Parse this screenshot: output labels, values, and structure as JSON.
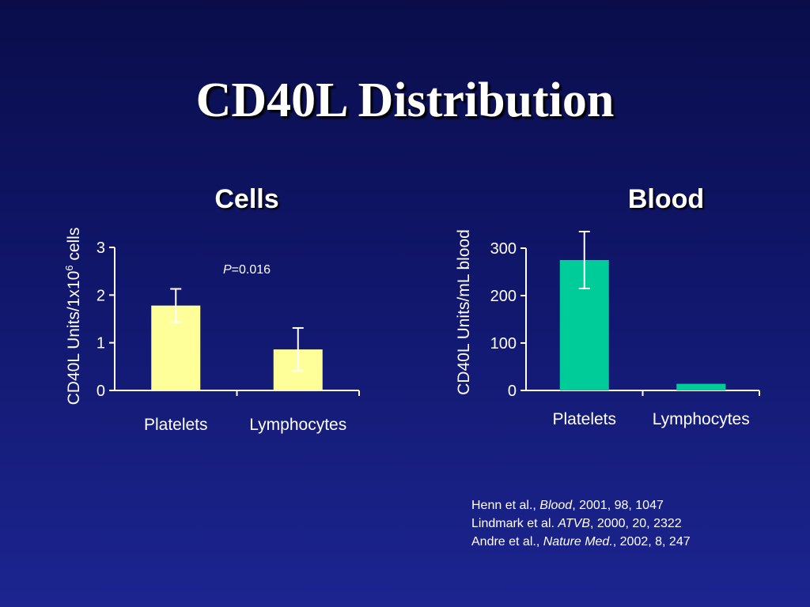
{
  "slide": {
    "title": "CD40L Distribution"
  },
  "chart_data": [
    {
      "type": "bar",
      "title": "Cells",
      "ylabel_main": "CD40L Units/1x10",
      "ylabel_sup": "6",
      "ylabel_tail": " cells",
      "xlabel": "",
      "categories": [
        "Platelets",
        "Lymphocytes"
      ],
      "values": [
        1.78,
        0.86
      ],
      "error": [
        0.35,
        0.45
      ],
      "ylim": [
        0,
        3
      ],
      "yticks": [
        "0",
        "1",
        "2",
        "3"
      ],
      "ytick_values": [
        0,
        1,
        2,
        3
      ],
      "bar_color": "#ffff99",
      "annotation_p": "P",
      "annotation_rest": "=0.016",
      "grid": false
    },
    {
      "type": "bar",
      "title": "Blood",
      "ylabel": "CD40L Units/mL blood",
      "xlabel": "",
      "categories": [
        "Platelets",
        "Lymphocytes"
      ],
      "values": [
        275,
        14
      ],
      "error": [
        60,
        0
      ],
      "ylim": [
        0,
        300
      ],
      "yticks": [
        "0",
        "100",
        "200",
        "300"
      ],
      "ytick_values": [
        0,
        100,
        200,
        300
      ],
      "bar_color": "#00cc99",
      "grid": false
    }
  ],
  "references": [
    {
      "pre": "Henn et al., ",
      "journal": "Blood",
      "post": ", 2001, 98, 1047"
    },
    {
      "pre": "Lindmark et al. ",
      "journal": "ATVB",
      "post": ", 2000, 20, 2322"
    },
    {
      "pre": "Andre et al., ",
      "journal": "Nature Med.",
      "post": ", 2002, 8, 247"
    }
  ]
}
